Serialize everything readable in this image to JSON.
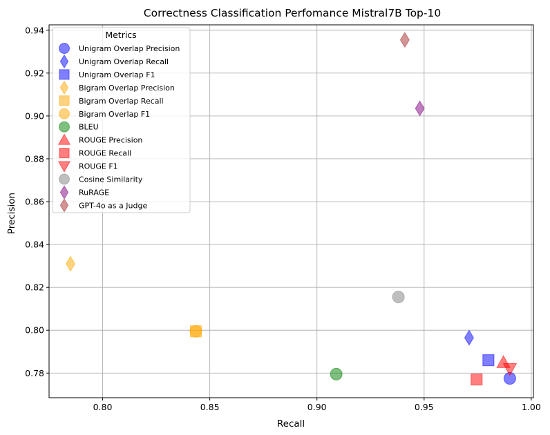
{
  "chart_data": {
    "type": "scatter",
    "title": "Correctness Classification Perfomance Mistral7B Top-10",
    "xlabel": "Recall",
    "ylabel": "Precision",
    "xlim": [
      0.775,
      1.001
    ],
    "ylim": [
      0.7685,
      0.9425
    ],
    "xticks": [
      0.8,
      0.85,
      0.9,
      0.95,
      1.0
    ],
    "xtick_labels": [
      "0.80",
      "0.85",
      "0.90",
      "0.95",
      "1.00"
    ],
    "yticks": [
      0.78,
      0.8,
      0.82,
      0.84,
      0.86,
      0.88,
      0.9,
      0.92,
      0.94
    ],
    "ytick_labels": [
      "0.78",
      "0.80",
      "0.82",
      "0.84",
      "0.86",
      "0.88",
      "0.90",
      "0.92",
      "0.94"
    ],
    "grid": true,
    "legend": {
      "title": "Metrics",
      "placement": "top-left"
    },
    "series": [
      {
        "name": "Unigram Overlap Precision",
        "marker": "circle",
        "color": "#0000ff",
        "x": [
          0.99
        ],
        "y": [
          0.7775
        ]
      },
      {
        "name": "Unigram Overlap Recall",
        "marker": "diamond",
        "color": "#0000ff",
        "x": [
          0.971
        ],
        "y": [
          0.7965
        ]
      },
      {
        "name": "Unigram Overlap F1",
        "marker": "square",
        "color": "#0000ff",
        "x": [
          0.98
        ],
        "y": [
          0.786
        ]
      },
      {
        "name": "Bigram Overlap Precision",
        "marker": "diamond",
        "color": "#ffa500",
        "x": [
          0.785
        ],
        "y": [
          0.831
        ]
      },
      {
        "name": "Bigram Overlap Recall",
        "marker": "square",
        "color": "#ffa500",
        "x": [
          0.8435
        ],
        "y": [
          0.7995
        ]
      },
      {
        "name": "Bigram Overlap F1",
        "marker": "circle",
        "color": "#ffa500",
        "x": [
          0.8435
        ],
        "y": [
          0.7995
        ]
      },
      {
        "name": "BLEU",
        "marker": "circle",
        "color": "#008000",
        "x": [
          0.909
        ],
        "y": [
          0.7795
        ]
      },
      {
        "name": "ROUGE Precision",
        "marker": "triangle-up",
        "color": "#ff0000",
        "x": [
          0.987
        ],
        "y": [
          0.785
        ]
      },
      {
        "name": "ROUGE Recall",
        "marker": "square",
        "color": "#ff0000",
        "x": [
          0.9745
        ],
        "y": [
          0.777
        ]
      },
      {
        "name": "ROUGE F1",
        "marker": "triangle-down",
        "color": "#ff0000",
        "x": [
          0.99
        ],
        "y": [
          0.782
        ]
      },
      {
        "name": "Cosine Similarity",
        "marker": "circle",
        "color": "#808080",
        "x": [
          0.938
        ],
        "y": [
          0.8155
        ]
      },
      {
        "name": "RuRAGE",
        "marker": "diamond",
        "color": "#800080",
        "x": [
          0.948
        ],
        "y": [
          0.9035
        ]
      },
      {
        "name": "GPT-4o as a Judge",
        "marker": "diamond",
        "color": "#a52a2a",
        "x": [
          0.941
        ],
        "y": [
          0.9355
        ]
      }
    ]
  }
}
